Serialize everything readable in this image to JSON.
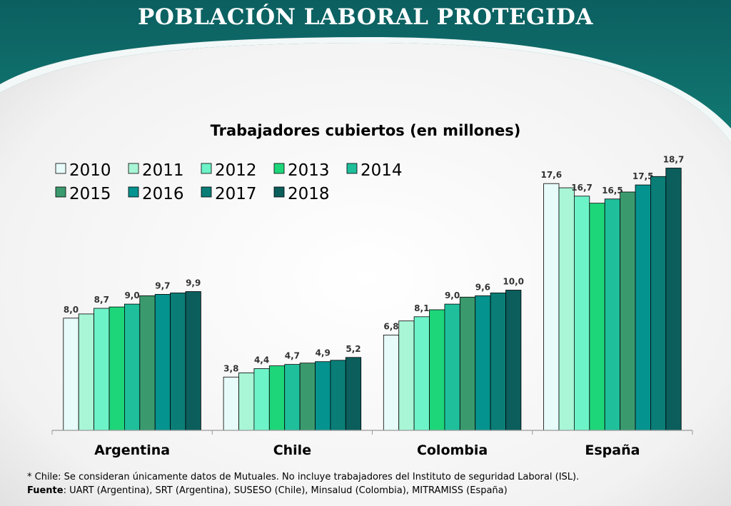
{
  "slide": {
    "title": "POBLACIÓN LABORAL PROTEGIDA",
    "footnote": "* Chile: Se consideran únicamente datos de Mutuales. No incluye trabajadores del Instituto de seguridad Laboral (ISL).",
    "source_label": "Fuente",
    "source_text": ": UART (Argentina), SRT (Argentina), SUSESO (Chile), Minsalud (Colombia), MITRAMISS (España)"
  },
  "chart_data": {
    "type": "bar",
    "title": "Trabajadores cubiertos (en millones)",
    "xlabel": "",
    "ylabel": "",
    "categories": [
      "Argentina",
      "Chile",
      "Colombia",
      "España"
    ],
    "ylim": [
      0,
      20
    ],
    "grid": false,
    "legend_position": "top-left",
    "series": [
      {
        "name": "2010",
        "color": "#e6fbfa",
        "values": [
          8.0,
          3.8,
          6.8,
          17.6
        ],
        "labels": [
          "8,0",
          "3,8",
          "6,8",
          "17,6"
        ]
      },
      {
        "name": "2011",
        "color": "#a9f6d6",
        "values": [
          8.3,
          4.1,
          7.8,
          17.3
        ],
        "labels": [
          "",
          "",
          "",
          ""
        ]
      },
      {
        "name": "2012",
        "color": "#6df3c8",
        "values": [
          8.7,
          4.4,
          8.1,
          16.7
        ],
        "labels": [
          "8,7",
          "4,4",
          "8,1",
          "16,7"
        ]
      },
      {
        "name": "2013",
        "color": "#1ed67a",
        "values": [
          8.8,
          4.6,
          8.6,
          16.2
        ],
        "labels": [
          "",
          "",
          "",
          ""
        ]
      },
      {
        "name": "2014",
        "color": "#1fbf9c",
        "values": [
          9.0,
          4.7,
          9.0,
          16.5
        ],
        "labels": [
          "9,0",
          "4,7",
          "9,0",
          "16,5"
        ]
      },
      {
        "name": "2015",
        "color": "#3a9a6e",
        "values": [
          9.6,
          4.8,
          9.5,
          17.0
        ],
        "labels": [
          "",
          "",
          "",
          ""
        ]
      },
      {
        "name": "2016",
        "color": "#05938f",
        "values": [
          9.7,
          4.9,
          9.6,
          17.5
        ],
        "labels": [
          "9,7",
          "4,9",
          "9,6",
          "17,5"
        ]
      },
      {
        "name": "2017",
        "color": "#0a7d77",
        "values": [
          9.8,
          5.0,
          9.8,
          18.1
        ],
        "labels": [
          "",
          "",
          "",
          ""
        ]
      },
      {
        "name": "2018",
        "color": "#0b5e5c",
        "values": [
          9.9,
          5.2,
          10.0,
          18.7
        ],
        "labels": [
          "9,9",
          "5,2",
          "10,0",
          "18,7"
        ]
      }
    ]
  }
}
